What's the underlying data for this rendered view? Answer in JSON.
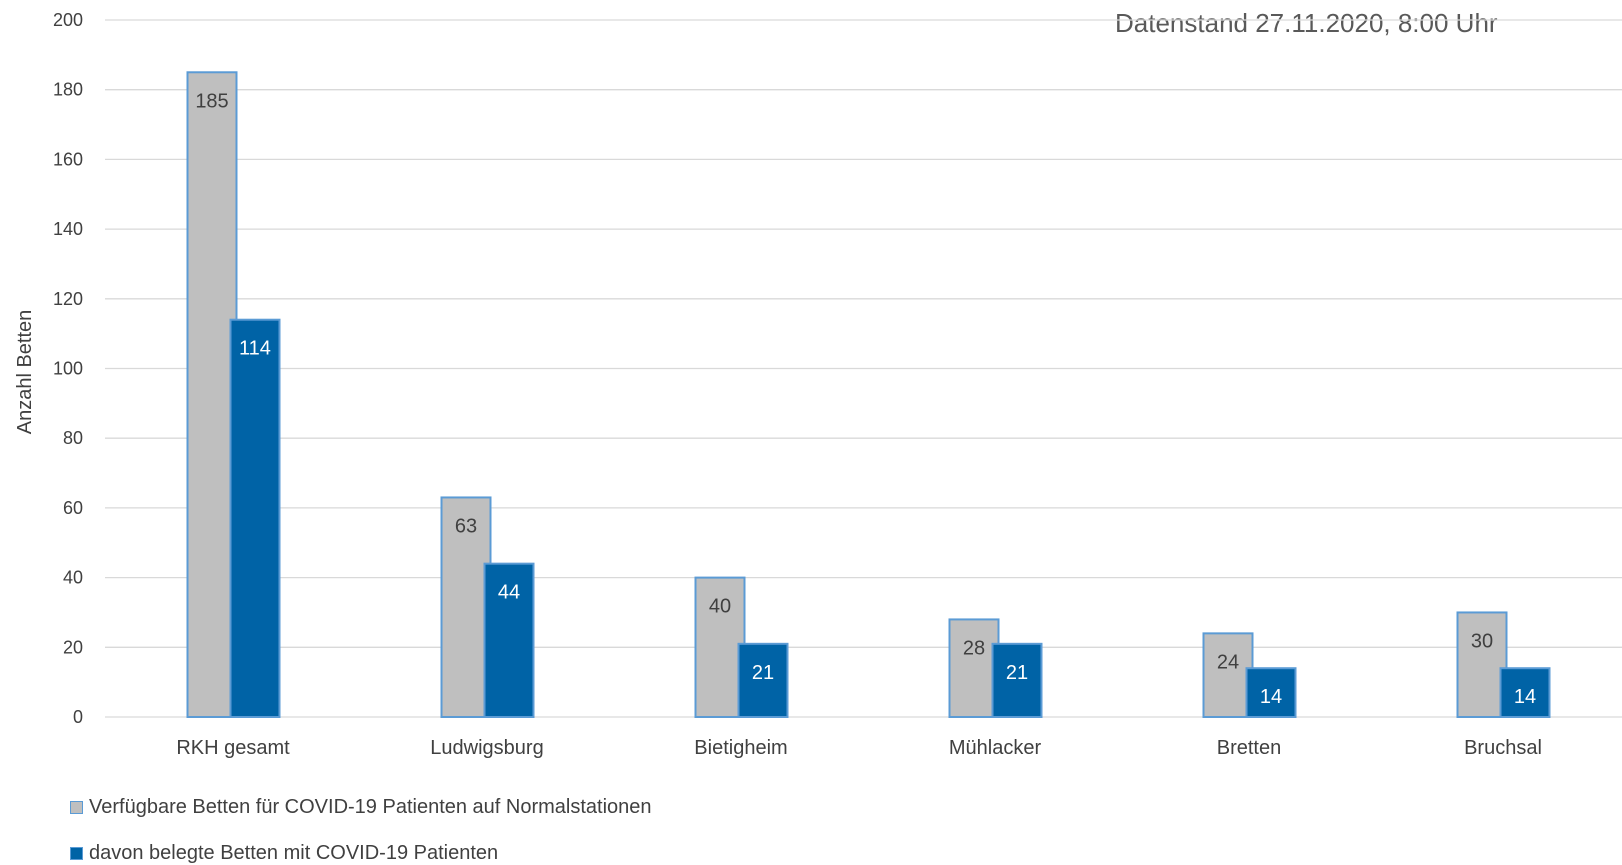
{
  "chart_data": {
    "type": "bar",
    "subtitle": "Datenstand 27.11.2020, 8:00 Uhr",
    "ylabel": "Anzahl Betten",
    "xlabel": "",
    "ylim": [
      0,
      200
    ],
    "yticks": [
      0,
      20,
      40,
      60,
      80,
      100,
      120,
      140,
      160,
      180,
      200
    ],
    "grid": true,
    "legend_position": "bottom-left",
    "categories": [
      "RKH gesamt",
      "Ludwigsburg",
      "Bietigheim",
      "Mühlacker",
      "Bretten",
      "Bruchsal"
    ],
    "series": [
      {
        "name": "Verfügbare Betten für COVID-19 Patienten auf Normalstationen",
        "values": [
          185,
          63,
          40,
          28,
          24,
          30
        ],
        "color": "#bfbfbf",
        "border": "#5b9bd5"
      },
      {
        "name": "davon belegte Betten mit COVID-19 Patienten",
        "values": [
          114,
          44,
          21,
          21,
          14,
          14
        ],
        "color": "#0063a6",
        "border": "#5b9bd5"
      }
    ]
  }
}
